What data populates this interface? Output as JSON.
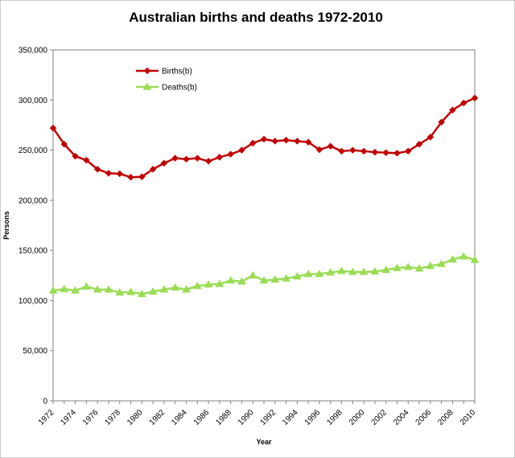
{
  "chart_data": {
    "type": "line",
    "title": "Australian births and deaths 1972-2010",
    "xlabel": "Year",
    "ylabel": "Persons",
    "ylim": [
      0,
      350000
    ],
    "y_ticks": [
      "0",
      "50,000",
      "100,000",
      "150,000",
      "200,000",
      "250,000",
      "300,000",
      "350,000"
    ],
    "y_tick_values": [
      0,
      50000,
      100000,
      150000,
      200000,
      250000,
      300000,
      350000
    ],
    "x": [
      1972,
      1973,
      1974,
      1975,
      1976,
      1977,
      1978,
      1979,
      1980,
      1981,
      1982,
      1983,
      1984,
      1985,
      1986,
      1987,
      1988,
      1989,
      1990,
      1991,
      1992,
      1993,
      1994,
      1995,
      1996,
      1997,
      1998,
      1999,
      2000,
      2001,
      2002,
      2003,
      2004,
      2005,
      2006,
      2007,
      2008,
      2009,
      2010
    ],
    "x_tick_labels": [
      "1972",
      "1974",
      "1976",
      "1978",
      "1980",
      "1982",
      "1984",
      "1986",
      "1988",
      "1990",
      "1992",
      "1994",
      "1996",
      "1998",
      "2000",
      "2002",
      "2004",
      "2006",
      "2008",
      "2010"
    ],
    "grid": false,
    "legend_position": "top-left",
    "series": [
      {
        "name": "Births(b)",
        "color": "#c00000",
        "marker": "diamond",
        "values": [
          272000,
          256000,
          244000,
          240000,
          231000,
          227000,
          226500,
          223000,
          223500,
          231000,
          237000,
          242000,
          241000,
          242000,
          239000,
          243000,
          246000,
          250000,
          257000,
          261000,
          259000,
          260000,
          259000,
          258000,
          250500,
          254000,
          249000,
          250000,
          249000,
          248000,
          247500,
          247000,
          249000,
          256000,
          263000,
          278000,
          290000,
          297000,
          302000
        ]
      },
      {
        "name": "Deaths(b)",
        "color": "#99dd55",
        "marker": "triangle",
        "values": [
          110000,
          111500,
          110000,
          114000,
          111000,
          111000,
          108000,
          108500,
          106500,
          109000,
          111000,
          113000,
          111000,
          114500,
          116000,
          116500,
          120000,
          119000,
          125000,
          120000,
          121000,
          122000,
          124000,
          126500,
          126500,
          128000,
          129500,
          128500,
          128500,
          129000,
          130500,
          132500,
          133500,
          132000,
          134500,
          136500,
          141000,
          144000,
          140500
        ]
      }
    ]
  }
}
